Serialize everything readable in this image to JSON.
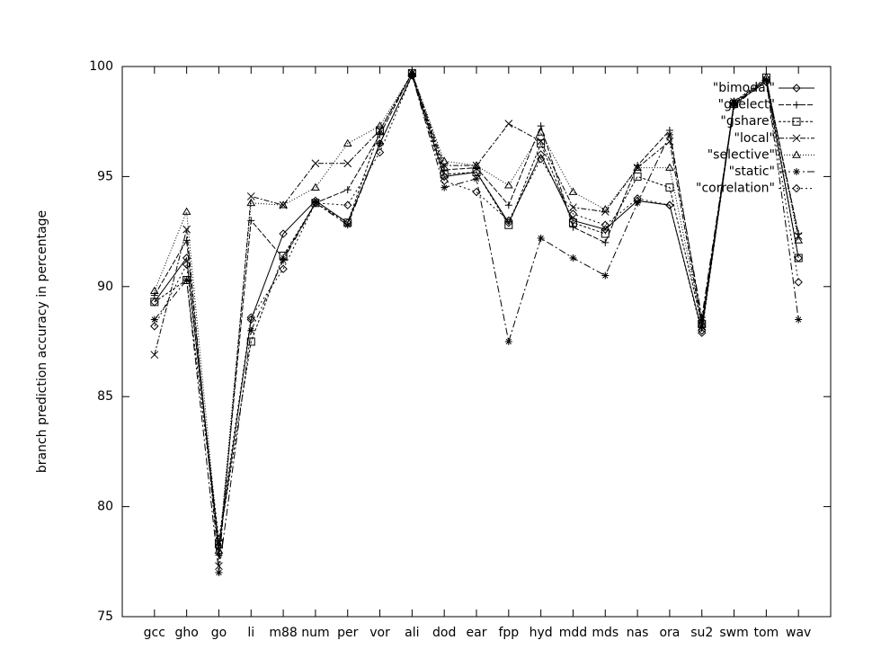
{
  "chart_data": {
    "type": "line",
    "y_label": "branch prediction accuracy in percentage",
    "categories": [
      "gcc",
      "gho",
      "go",
      "li",
      "m88",
      "num",
      "per",
      "vor",
      "ali",
      "dod",
      "ear",
      "fpp",
      "hyd",
      "mdd",
      "mds",
      "nas",
      "ora",
      "su2",
      "swm",
      "tom",
      "wav"
    ],
    "ylim": [
      75,
      100
    ],
    "yticks": [
      75,
      80,
      85,
      90,
      95,
      100
    ],
    "legend": "top-right",
    "series": [
      {
        "name": "\"bimodal\"",
        "color": "#000000",
        "marker": "diamond",
        "dash": "none",
        "values": [
          89.3,
          91.3,
          78.2,
          88.5,
          92.4,
          93.9,
          92.9,
          96.5,
          99.6,
          95.0,
          95.2,
          92.9,
          96.0,
          93.0,
          92.6,
          93.9,
          93.7,
          88.0,
          98.3,
          99.3,
          91.3
        ]
      },
      {
        "name": "\"gselect\"",
        "color": "#000000",
        "marker": "plus",
        "dash": "6 2",
        "values": [
          89.6,
          92.1,
          77.8,
          93.0,
          91.3,
          93.8,
          94.4,
          96.9,
          99.7,
          95.3,
          95.4,
          93.7,
          97.3,
          92.7,
          92.0,
          95.5,
          97.1,
          88.4,
          98.2,
          99.4,
          92.4
        ]
      },
      {
        "name": "\"gshare\"",
        "color": "#000000",
        "marker": "square",
        "dash": "3 2",
        "values": [
          89.3,
          90.3,
          78.3,
          87.5,
          91.4,
          93.8,
          92.9,
          97.1,
          99.7,
          95.1,
          95.2,
          92.8,
          96.5,
          92.9,
          92.4,
          95.0,
          94.5,
          88.3,
          98.3,
          99.5,
          91.3
        ]
      },
      {
        "name": "\"local\"",
        "color": "#000000",
        "marker": "cross",
        "dash": "6 2 2 2",
        "values": [
          86.9,
          92.6,
          77.3,
          94.1,
          93.7,
          95.6,
          95.6,
          97.1,
          99.7,
          95.5,
          95.5,
          97.4,
          96.6,
          93.6,
          93.4,
          95.4,
          96.6,
          88.2,
          98.4,
          99.4,
          92.3
        ]
      },
      {
        "name": "\"selective\"",
        "color": "#000000",
        "marker": "triangle",
        "dash": "1 2",
        "values": [
          89.8,
          93.4,
          78.0,
          93.8,
          93.7,
          94.5,
          96.5,
          97.3,
          99.7,
          95.7,
          95.5,
          94.6,
          97.0,
          94.3,
          93.5,
          95.4,
          95.4,
          88.3,
          98.4,
          99.5,
          92.1
        ]
      },
      {
        "name": "\"static\"",
        "color": "#000000",
        "marker": "star",
        "dash": "8 3 2 3",
        "values": [
          88.5,
          90.3,
          77.0,
          88.0,
          91.2,
          93.8,
          92.8,
          96.5,
          99.6,
          94.5,
          94.9,
          87.5,
          92.2,
          91.3,
          90.5,
          93.8,
          96.9,
          88.6,
          98.3,
          99.4,
          88.5
        ]
      },
      {
        "name": "\"correlation\"",
        "color": "#000000",
        "marker": "diamond",
        "dash": "2 3",
        "values": [
          88.2,
          91.0,
          78.5,
          88.6,
          90.8,
          93.8,
          93.7,
          96.1,
          99.6,
          94.8,
          94.3,
          93.0,
          95.8,
          93.3,
          92.8,
          94.0,
          93.7,
          87.9,
          98.3,
          99.3,
          90.2
        ]
      }
    ]
  }
}
